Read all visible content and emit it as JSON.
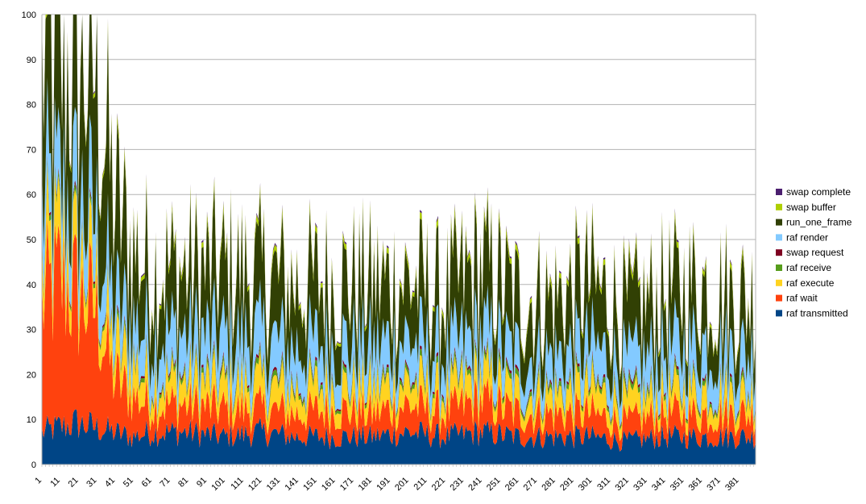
{
  "chart_data": {
    "type": "area",
    "stacked": true,
    "title": "",
    "xlabel": "",
    "ylabel": "",
    "ylim": [
      0,
      100
    ],
    "yticks": [
      0,
      10,
      20,
      30,
      40,
      50,
      60,
      70,
      80,
      90,
      100
    ],
    "xlim": [
      1,
      390
    ],
    "xticks": [
      1,
      11,
      21,
      31,
      41,
      51,
      61,
      71,
      81,
      91,
      101,
      111,
      121,
      131,
      141,
      151,
      161,
      171,
      181,
      191,
      201,
      211,
      221,
      231,
      241,
      251,
      261,
      271,
      281,
      291,
      301,
      311,
      321,
      331,
      341,
      351,
      361,
      371,
      381
    ],
    "grid": "horizontal",
    "legend_position": "right",
    "legend": [
      "swap complete",
      "swap buffer",
      "run_one_frame",
      "raf render",
      "swap request",
      "raf receive",
      "raf execute",
      "raf wait",
      "raf transmitted"
    ],
    "series": [
      {
        "name": "raf transmitted",
        "color": "#004586",
        "x": [
          1,
          10,
          20,
          30,
          40,
          50,
          60,
          80,
          100,
          120,
          140,
          160,
          180,
          200,
          220,
          240,
          260,
          280,
          300,
          320,
          340,
          360,
          380,
          390
        ],
        "values": [
          7,
          8,
          9,
          8,
          7,
          6,
          7,
          7,
          6,
          7,
          6,
          6,
          6,
          7,
          6,
          7,
          6,
          6,
          6,
          5,
          6,
          6,
          6,
          6
        ]
      },
      {
        "name": "raf wait",
        "color": "#ff420e",
        "x": [
          1,
          10,
          20,
          30,
          40,
          50,
          60,
          80,
          100,
          120,
          140,
          160,
          180,
          200,
          220,
          240,
          260,
          280,
          300,
          320,
          340,
          360,
          380,
          390
        ],
        "values": [
          28,
          32,
          28,
          26,
          12,
          9,
          6,
          6,
          6,
          5,
          5,
          6,
          5,
          6,
          5,
          7,
          5,
          5,
          5,
          4,
          5,
          5,
          5,
          5
        ]
      },
      {
        "name": "raf execute",
        "color": "#ffd320",
        "x": [
          1,
          10,
          20,
          30,
          40,
          50,
          60,
          80,
          100,
          120,
          140,
          160,
          180,
          200,
          220,
          240,
          260,
          280,
          300,
          320,
          340,
          360,
          380,
          390
        ],
        "values": [
          8,
          8,
          7,
          7,
          6,
          7,
          5,
          5,
          5,
          5,
          5,
          5,
          5,
          5,
          4,
          5,
          4,
          4,
          5,
          4,
          4,
          5,
          4,
          4
        ]
      },
      {
        "name": "raf receive",
        "color": "#579d1c",
        "x": [
          1,
          10,
          20,
          30,
          40,
          50,
          60,
          80,
          100,
          120,
          140,
          160,
          180,
          200,
          220,
          240,
          260,
          280,
          300,
          320,
          340,
          360,
          380,
          390
        ],
        "values": [
          1,
          1,
          1,
          1,
          1,
          1,
          1,
          1,
          1,
          1,
          1,
          1,
          1,
          1,
          1,
          1,
          1,
          1,
          1,
          1,
          1,
          1,
          1,
          1
        ]
      },
      {
        "name": "swap request",
        "color": "#7e0021",
        "x": [
          1,
          10,
          20,
          30,
          40,
          50,
          60,
          80,
          100,
          120,
          140,
          160,
          180,
          200,
          220,
          240,
          260,
          280,
          300,
          320,
          340,
          360,
          380,
          390
        ],
        "values": [
          0.5,
          0.5,
          0.5,
          0.5,
          0.5,
          0.5,
          0.5,
          0.5,
          0.5,
          0.5,
          0.5,
          0.5,
          0.5,
          0.5,
          0.5,
          0.5,
          0.5,
          0.5,
          0.5,
          0.5,
          0.5,
          0.5,
          0.5,
          0.5
        ]
      },
      {
        "name": "raf render",
        "color": "#83caff",
        "x": [
          1,
          10,
          20,
          30,
          40,
          50,
          60,
          80,
          100,
          120,
          140,
          160,
          180,
          200,
          220,
          240,
          260,
          280,
          300,
          320,
          340,
          360,
          380,
          390
        ],
        "values": [
          12,
          10,
          12,
          11,
          9,
          8,
          9,
          9,
          9,
          9,
          8,
          8,
          8,
          8,
          7,
          8,
          7,
          7,
          8,
          7,
          8,
          9,
          8,
          8
        ]
      },
      {
        "name": "run_one_frame",
        "color": "#314004",
        "x": [
          1,
          10,
          20,
          30,
          40,
          50,
          60,
          80,
          100,
          120,
          140,
          160,
          180,
          200,
          220,
          240,
          260,
          280,
          300,
          320,
          340,
          360,
          380,
          390
        ],
        "values": [
          30,
          25,
          30,
          32,
          22,
          15,
          14,
          13,
          14,
          13,
          13,
          13,
          13,
          12,
          12,
          14,
          12,
          12,
          13,
          11,
          12,
          12,
          11,
          11
        ]
      },
      {
        "name": "swap buffer",
        "color": "#aecf00",
        "x": [
          1,
          10,
          20,
          30,
          40,
          50,
          60,
          80,
          100,
          120,
          140,
          160,
          180,
          200,
          220,
          240,
          260,
          280,
          300,
          320,
          340,
          360,
          380,
          390
        ],
        "values": [
          1,
          1,
          1,
          1,
          1,
          1,
          1,
          1,
          1,
          1,
          1,
          1,
          1,
          1,
          1,
          1,
          1,
          1,
          1,
          1,
          1,
          1,
          1,
          1
        ]
      },
      {
        "name": "swap complete",
        "color": "#4b1f6f",
        "x": [
          1,
          10,
          20,
          30,
          40,
          50,
          60,
          80,
          100,
          120,
          140,
          160,
          180,
          200,
          220,
          240,
          260,
          280,
          300,
          320,
          340,
          360,
          380,
          390
        ],
        "values": [
          0.3,
          0.3,
          0.3,
          0.3,
          0.3,
          0.3,
          0.3,
          0.3,
          0.3,
          0.3,
          0.3,
          0.3,
          0.3,
          0.3,
          0.3,
          0.3,
          0.3,
          0.3,
          0.3,
          0.3,
          0.3,
          0.3,
          0.3,
          0.3
        ]
      }
    ]
  }
}
